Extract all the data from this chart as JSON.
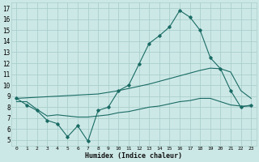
{
  "title": "",
  "xlabel": "Humidex (Indice chaleur)",
  "bg_color": "#cce8e6",
  "grid_color": "#aacfcc",
  "line_color": "#1a6b64",
  "xlim": [
    -0.5,
    23.5
  ],
  "ylim": [
    4.5,
    17.5
  ],
  "xticks": [
    0,
    1,
    2,
    3,
    4,
    5,
    6,
    7,
    8,
    9,
    10,
    11,
    12,
    13,
    14,
    15,
    16,
    17,
    18,
    19,
    20,
    21,
    22,
    23
  ],
  "yticks": [
    5,
    6,
    7,
    8,
    9,
    10,
    11,
    12,
    13,
    14,
    15,
    16,
    17
  ],
  "line1_x": [
    0,
    1,
    2,
    3,
    4,
    5,
    6,
    7,
    8,
    9,
    10,
    11,
    12,
    13,
    14,
    15,
    16,
    17,
    18,
    19,
    20,
    21,
    22,
    23
  ],
  "line1_y": [
    8.8,
    8.2,
    7.7,
    6.8,
    6.5,
    5.3,
    6.3,
    4.9,
    7.7,
    8.0,
    9.5,
    10.0,
    11.9,
    13.8,
    14.5,
    15.3,
    16.8,
    16.2,
    15.0,
    12.5,
    11.5,
    9.5,
    8.0,
    8.2
  ],
  "line2_x": [
    0,
    1,
    2,
    3,
    4,
    5,
    6,
    7,
    8,
    9,
    10,
    11,
    12,
    13,
    14,
    15,
    16,
    17,
    18,
    19,
    20,
    21,
    22,
    23
  ],
  "line2_y": [
    8.8,
    8.85,
    8.9,
    8.95,
    9.0,
    9.05,
    9.1,
    9.15,
    9.2,
    9.35,
    9.5,
    9.7,
    9.9,
    10.1,
    10.35,
    10.6,
    10.85,
    11.1,
    11.35,
    11.55,
    11.5,
    11.2,
    9.5,
    8.8
  ],
  "line3_x": [
    0,
    1,
    2,
    3,
    4,
    5,
    6,
    7,
    8,
    9,
    10,
    11,
    12,
    13,
    14,
    15,
    16,
    17,
    18,
    19,
    20,
    21,
    22,
    23
  ],
  "line3_y": [
    8.5,
    8.5,
    7.8,
    7.2,
    7.3,
    7.2,
    7.1,
    7.1,
    7.2,
    7.3,
    7.5,
    7.6,
    7.8,
    8.0,
    8.1,
    8.3,
    8.5,
    8.6,
    8.8,
    8.8,
    8.5,
    8.2,
    8.1,
    8.1
  ]
}
